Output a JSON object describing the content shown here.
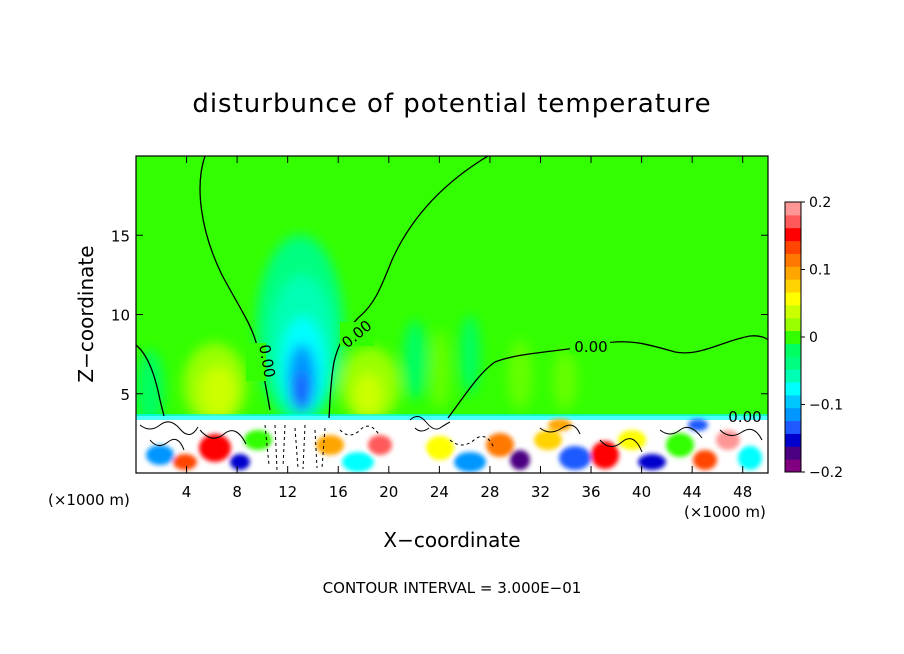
{
  "chart_data": {
    "type": "heatmap",
    "title": "disturbunce of potential temperature",
    "xlabel": "X−coordinate",
    "ylabel": "Z−coordinate",
    "x_unit_left": "(×1000 m)",
    "x_unit_right": "(×1000 m)",
    "xlim": [
      0,
      50
    ],
    "ylim": [
      0,
      20
    ],
    "x_ticks": [
      4,
      8,
      12,
      16,
      20,
      24,
      28,
      32,
      36,
      40,
      44,
      48
    ],
    "y_ticks": [
      5,
      10,
      15
    ],
    "contour_interval_text": "CONTOUR INTERVAL = 3.000E−01",
    "contour_labels": [
      "0.00",
      "0.00",
      "0.00",
      "0.00",
      "0.00"
    ],
    "colorbar": {
      "min": -0.2,
      "max": 0.2,
      "tick_values": [
        0.2,
        0.1,
        0,
        -0.1,
        -0.2
      ],
      "tick_labels": [
        "0.2",
        "0.1",
        "0",
        "−0.1",
        "−0.2"
      ],
      "colors": [
        "#800080",
        "#4b0082",
        "#0000cd",
        "#1e5aff",
        "#0096ff",
        "#00c8ff",
        "#00ffff",
        "#00ffb4",
        "#00ff80",
        "#00ff60",
        "#33ff00",
        "#99ff00",
        "#ccff00",
        "#ffff00",
        "#ffd200",
        "#ffa500",
        "#ff7800",
        "#ff4500",
        "#ff0000",
        "#ff5a5a",
        "#ff9696"
      ]
    },
    "background_color": "#33ff00"
  }
}
